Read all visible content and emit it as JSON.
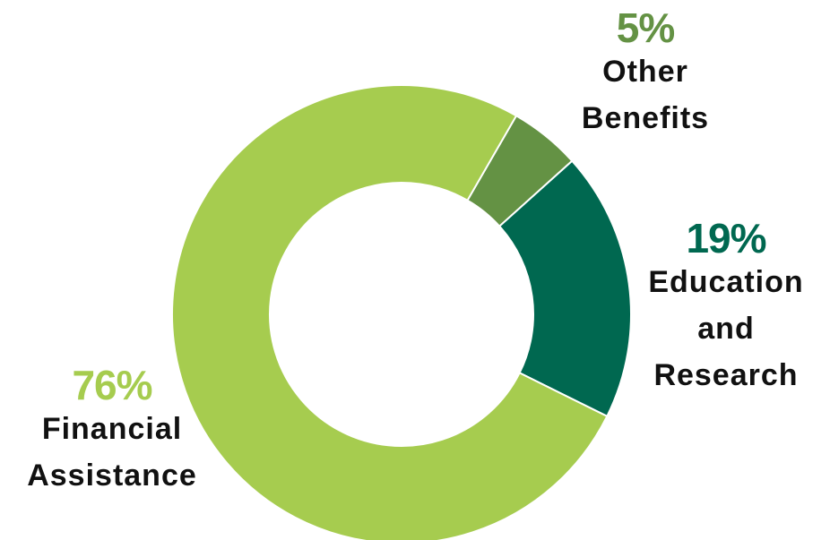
{
  "chart_data": {
    "type": "pie",
    "donut": true,
    "title": "",
    "slices": [
      {
        "key": "other",
        "name_lines": [
          "Other",
          "Benefits"
        ],
        "value": 5,
        "pct_label": "5%",
        "color": "#649244"
      },
      {
        "key": "edu",
        "name_lines": [
          "Education",
          "and",
          "Research"
        ],
        "value": 19,
        "pct_label": "19%",
        "color": "#006850"
      },
      {
        "key": "fin",
        "name_lines": [
          "Financial",
          "Assistance"
        ],
        "value": 76,
        "pct_label": "76%",
        "color": "#a6cc4f"
      }
    ],
    "legend": "none"
  }
}
